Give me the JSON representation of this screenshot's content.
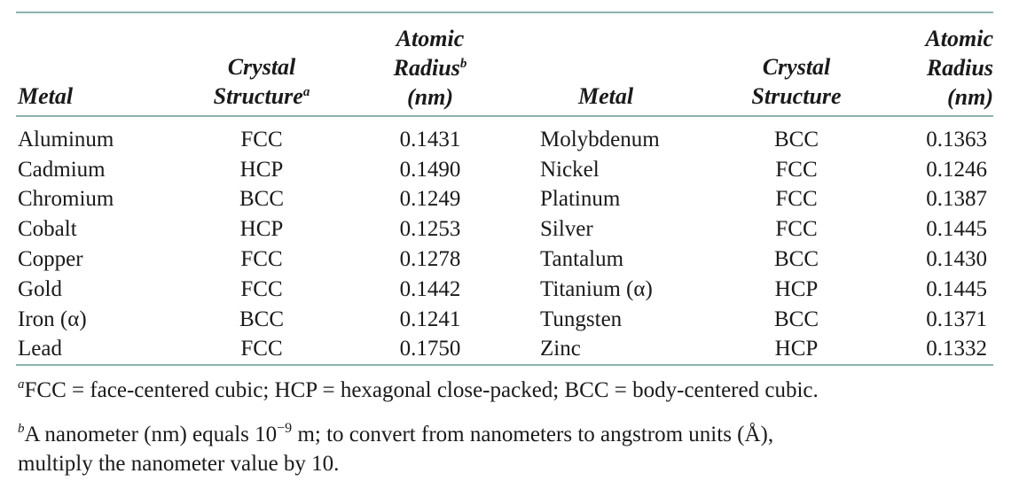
{
  "headers": {
    "metal": "Metal",
    "crystal_1": "Crystal",
    "structure_1": "Structure",
    "structure_note": "a",
    "atomic_1": "Atomic",
    "radius_1": "Radius",
    "radius_note": "b",
    "nm_1": "(nm)",
    "metal_2": "Metal",
    "crystal_2": "Crystal",
    "structure_2": "Structure",
    "atomic_2": "Atomic",
    "radius_2": "Radius",
    "nm_2": "(nm)"
  },
  "rows": [
    {
      "m1": "Aluminum",
      "s1": "FCC",
      "r1": "0.1431",
      "m2": "Molybdenum",
      "s2": "BCC",
      "r2": "0.1363"
    },
    {
      "m1": "Cadmium",
      "s1": "HCP",
      "r1": "0.1490",
      "m2": "Nickel",
      "s2": "FCC",
      "r2": "0.1246"
    },
    {
      "m1": "Chromium",
      "s1": "BCC",
      "r1": "0.1249",
      "m2": "Platinum",
      "s2": "FCC",
      "r2": "0.1387"
    },
    {
      "m1": "Cobalt",
      "s1": "HCP",
      "r1": "0.1253",
      "m2": "Silver",
      "s2": "FCC",
      "r2": "0.1445"
    },
    {
      "m1": "Copper",
      "s1": "FCC",
      "r1": "0.1278",
      "m2": "Tantalum",
      "s2": "BCC",
      "r2": "0.1430"
    },
    {
      "m1": "Gold",
      "s1": "FCC",
      "r1": "0.1442",
      "m2": "Titanium (α)",
      "s2": "HCP",
      "r2": "0.1445"
    },
    {
      "m1": "Iron (α)",
      "s1": "BCC",
      "r1": "0.1241",
      "m2": "Tungsten",
      "s2": "BCC",
      "r2": "0.1371"
    },
    {
      "m1": "Lead",
      "s1": "FCC",
      "r1": "0.1750",
      "m2": "Zinc",
      "s2": "HCP",
      "r2": "0.1332"
    }
  ],
  "footnotes": {
    "a_mark": "a",
    "a_text": "FCC = face-centered cubic; HCP = hexagonal close-packed; BCC = body-centered cubic.",
    "b_mark": "b",
    "b_text_1": "A nanometer (nm) equals 10",
    "b_exp": "−9",
    "b_text_2": " m; to convert from nanometers to angstrom units (Å),",
    "b_text_3": "multiply the nanometer value by 10."
  },
  "colors": {
    "rule": "#8fb3ad"
  }
}
